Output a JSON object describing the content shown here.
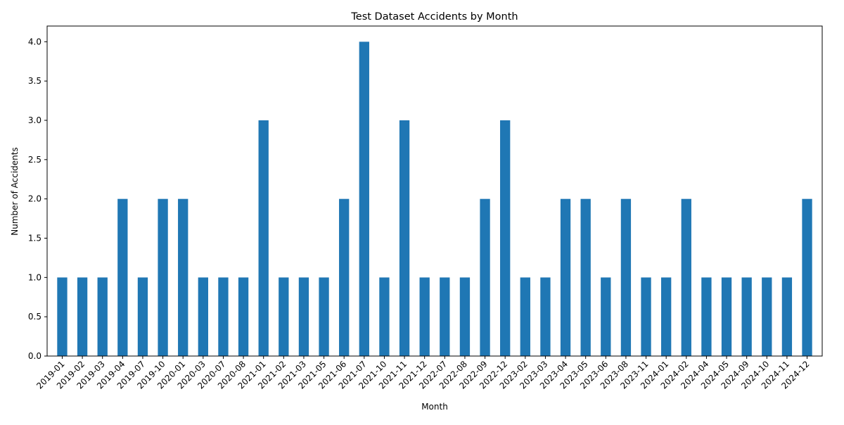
{
  "chart_data": {
    "type": "bar",
    "title": "Test Dataset Accidents by Month",
    "xlabel": "Month",
    "ylabel": "Number of Accidents",
    "ylim": [
      0,
      4.2
    ],
    "yticks": [
      0.0,
      0.5,
      1.0,
      1.5,
      2.0,
      2.5,
      3.0,
      3.5,
      4.0
    ],
    "ytick_labels": [
      "0.0",
      "0.5",
      "1.0",
      "1.5",
      "2.0",
      "2.5",
      "3.0",
      "3.5",
      "4.0"
    ],
    "grid": false,
    "legend": "none",
    "bar_color": "#1f77b4",
    "categories": [
      "2019-01",
      "2019-02",
      "2019-03",
      "2019-04",
      "2019-07",
      "2019-10",
      "2020-01",
      "2020-03",
      "2020-07",
      "2020-08",
      "2021-01",
      "2021-02",
      "2021-03",
      "2021-05",
      "2021-06",
      "2021-07",
      "2021-10",
      "2021-11",
      "2021-12",
      "2022-07",
      "2022-08",
      "2022-09",
      "2022-12",
      "2023-02",
      "2023-03",
      "2023-04",
      "2023-05",
      "2023-06",
      "2023-08",
      "2023-11",
      "2024-01",
      "2024-02",
      "2024-04",
      "2024-05",
      "2024-09",
      "2024-10",
      "2024-11",
      "2024-12"
    ],
    "values": [
      1,
      1,
      1,
      2,
      1,
      2,
      2,
      1,
      1,
      1,
      3,
      1,
      1,
      1,
      2,
      4,
      1,
      3,
      1,
      1,
      1,
      2,
      3,
      1,
      1,
      2,
      2,
      1,
      2,
      1,
      1,
      2,
      1,
      1,
      1,
      1,
      1,
      2
    ]
  }
}
